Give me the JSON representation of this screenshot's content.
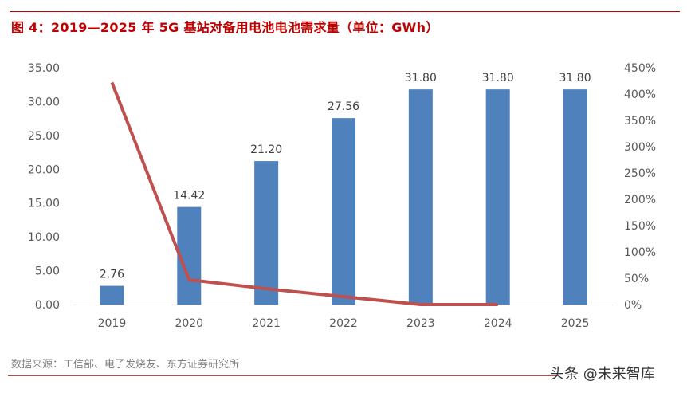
{
  "title": "图 4：2019—2025 年 5G 基站对备用电池电池需求量（单位：GWh）",
  "source": "数据来源：工信部、电子发烧友、东方证券研究所",
  "watermark": "头条 @未来智库",
  "colors": {
    "bar": "#4f81bd",
    "line": "#c0504d",
    "title": "#c00000"
  },
  "chart_data": {
    "type": "bar+line",
    "categories": [
      "2019",
      "2020",
      "2021",
      "2022",
      "2023",
      "2024",
      "2025"
    ],
    "series": [
      {
        "type": "bar",
        "axis": "left",
        "values": [
          2.76,
          14.42,
          21.2,
          27.56,
          31.8,
          31.8,
          31.8
        ],
        "data_labels": [
          "2.76",
          "14.42",
          "21.20",
          "27.56",
          "31.80",
          "31.80",
          "31.80"
        ]
      },
      {
        "type": "line",
        "axis": "right",
        "values": [
          422,
          47,
          30,
          15,
          0,
          0,
          null
        ],
        "unit": "%"
      }
    ],
    "y_left": {
      "range": [
        0,
        35
      ],
      "ticks": [
        "0.00",
        "5.00",
        "10.00",
        "15.00",
        "20.00",
        "25.00",
        "30.00",
        "35.00"
      ]
    },
    "y_right": {
      "range": [
        0,
        450
      ],
      "ticks": [
        "0%",
        "50%",
        "100%",
        "150%",
        "200%",
        "250%",
        "300%",
        "350%",
        "400%",
        "450%"
      ]
    },
    "grid": false,
    "legend": "none"
  }
}
